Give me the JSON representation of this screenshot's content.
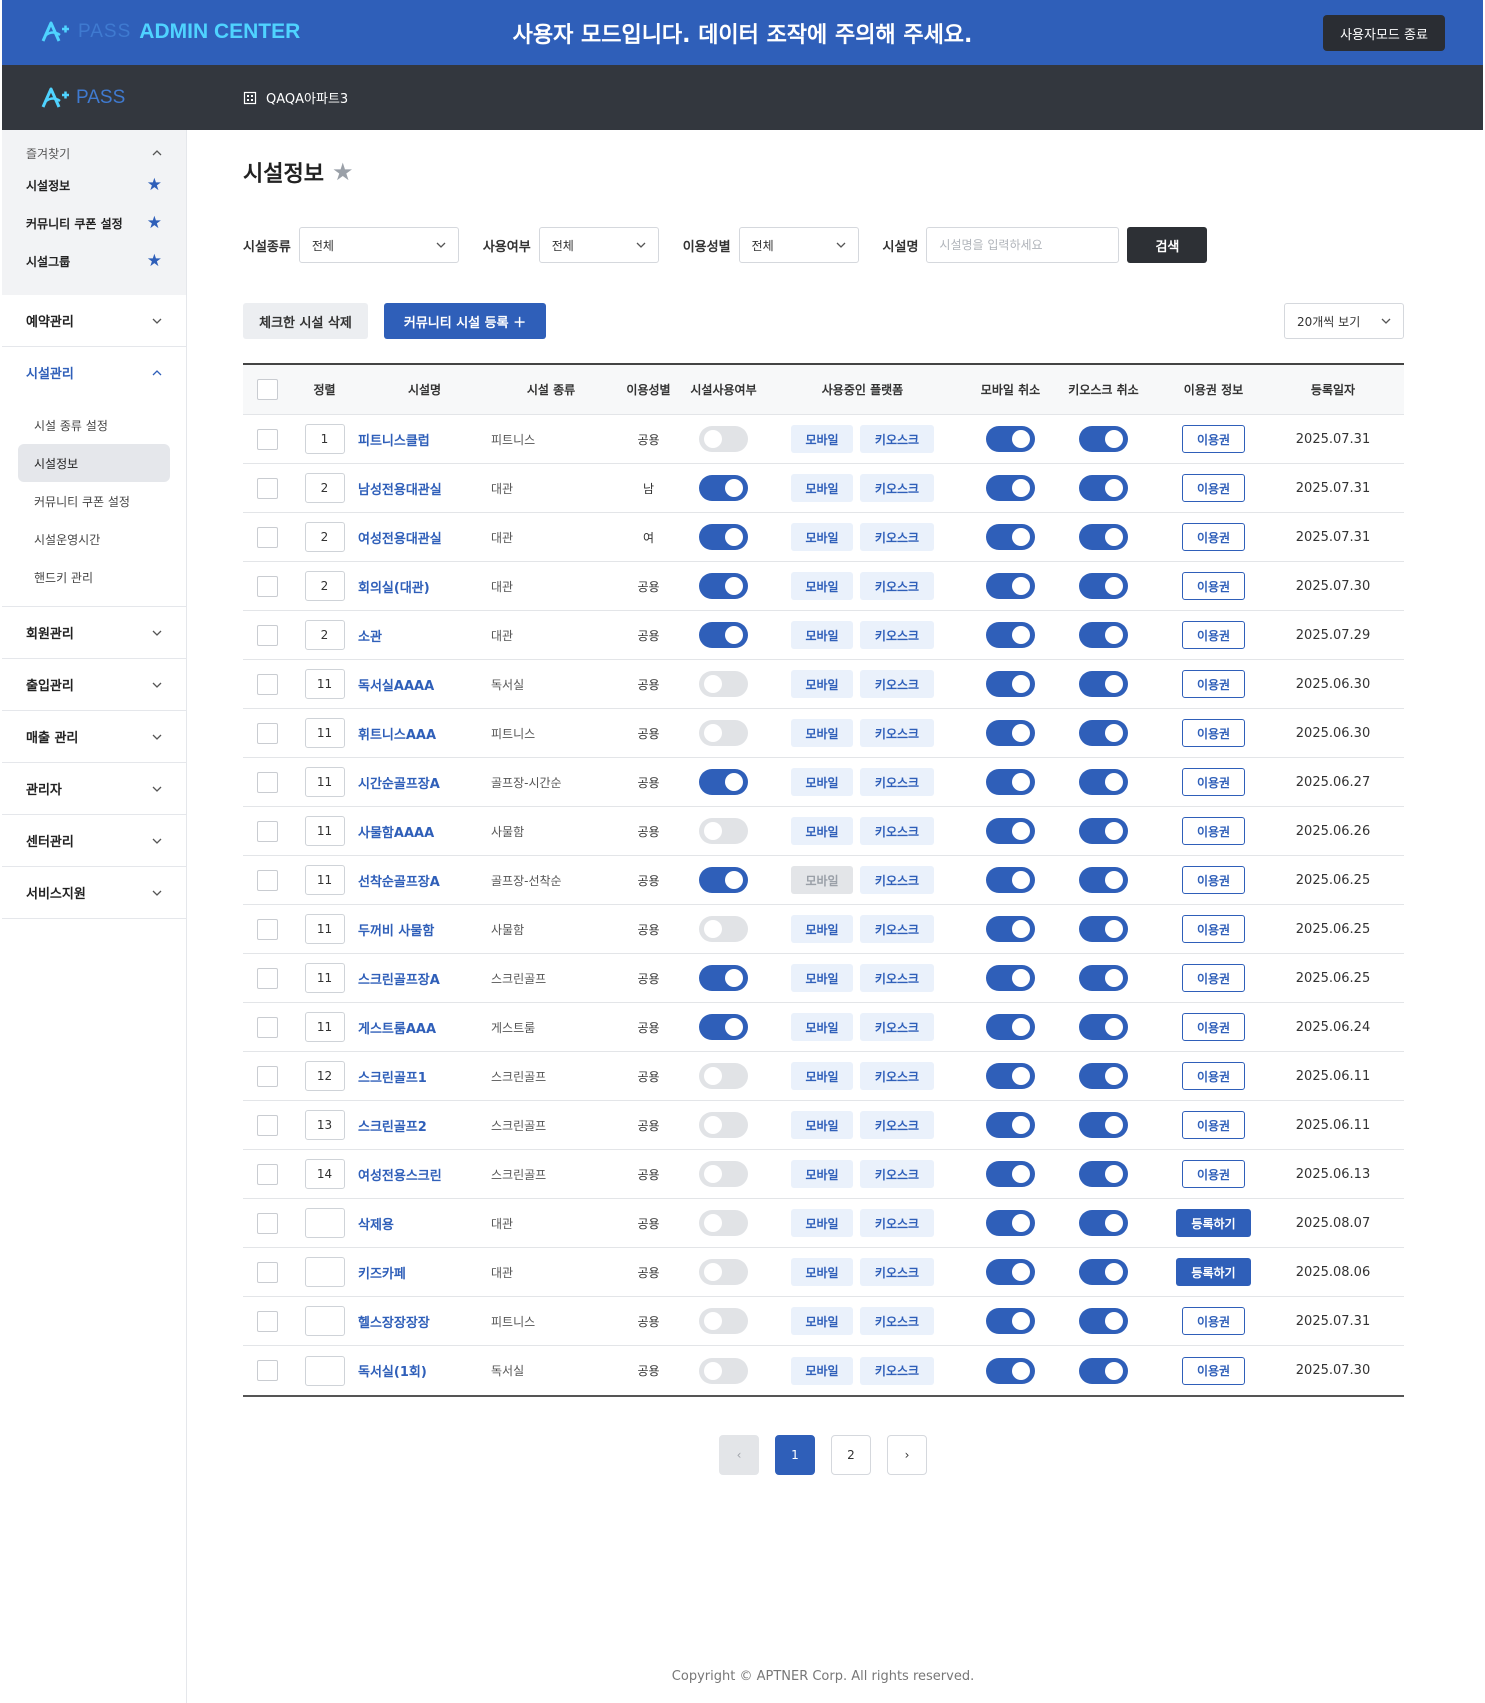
{
  "banner": {
    "logo_pass": "PASS",
    "logo_admin": "ADMIN CENTER",
    "notice": "사용자 모드입니다. 데이터 조작에 주의해 주세요.",
    "end_button": "사용자모드 종료"
  },
  "topbar": {
    "logo_pass": "PASS",
    "apartment": "QAQA아파트3"
  },
  "sidebar": {
    "favorites_label": "즐겨찾기",
    "favorites": [
      {
        "label": "시설정보"
      },
      {
        "label": "커뮤니티 쿠폰 설정"
      },
      {
        "label": "시설그룹"
      }
    ],
    "groups": [
      {
        "label": "예약관리"
      },
      {
        "label": "시설관리"
      },
      {
        "label": "회원관리"
      },
      {
        "label": "출입관리"
      },
      {
        "label": "매출 관리"
      },
      {
        "label": "관리자"
      },
      {
        "label": "센터관리"
      },
      {
        "label": "서비스지원"
      }
    ],
    "facility_sub": [
      {
        "label": "시설 종류 설정"
      },
      {
        "label": "시설정보"
      },
      {
        "label": "커뮤니티 쿠폰 설정"
      },
      {
        "label": "시설운영시간"
      },
      {
        "label": "핸드키 관리"
      }
    ]
  },
  "page": {
    "title": "시설정보"
  },
  "filters": {
    "type_label": "시설종류",
    "type_value": "전체",
    "use_label": "사용여부",
    "use_value": "전체",
    "sex_label": "이용성별",
    "sex_value": "전체",
    "name_label": "시설명",
    "name_placeholder": "시설명을 입력하세요",
    "search_button": "검색"
  },
  "actions": {
    "delete_button": "체크한 시설 삭제",
    "register_button": "커뮤니티 시설 등록  ＋",
    "page_size": "20개씩 보기"
  },
  "table": {
    "headers": {
      "order": "정렬",
      "name": "시설명",
      "type": "시설 종류",
      "sex": "이용성별",
      "use": "시설사용여부",
      "platform": "사용중인 플랫폼",
      "mobile_cancel": "모바일 취소",
      "kiosk_cancel": "키오스크 취소",
      "ticket": "이용권 정보",
      "date": "등록일자"
    },
    "mobile_label": "모바일",
    "kiosk_label": "키오스크",
    "rows": [
      {
        "order": "1",
        "name": "피트니스클럽",
        "type": "피트니스",
        "sex": "공용",
        "use": false,
        "mobile_enabled": true,
        "mobile_cancel": true,
        "kiosk_cancel": true,
        "ticket": "이용권",
        "ticket_style": "outline",
        "date": "2025.07.31"
      },
      {
        "order": "2",
        "name": "남성전용대관실",
        "type": "대관",
        "sex": "남",
        "use": true,
        "mobile_enabled": true,
        "mobile_cancel": true,
        "kiosk_cancel": true,
        "ticket": "이용권",
        "ticket_style": "outline",
        "date": "2025.07.31"
      },
      {
        "order": "2",
        "name": "여성전용대관실",
        "type": "대관",
        "sex": "여",
        "use": true,
        "mobile_enabled": true,
        "mobile_cancel": true,
        "kiosk_cancel": true,
        "ticket": "이용권",
        "ticket_style": "outline",
        "date": "2025.07.31"
      },
      {
        "order": "2",
        "name": "회의실(대관)",
        "type": "대관",
        "sex": "공용",
        "use": true,
        "mobile_enabled": true,
        "mobile_cancel": true,
        "kiosk_cancel": true,
        "ticket": "이용권",
        "ticket_style": "outline",
        "date": "2025.07.30"
      },
      {
        "order": "2",
        "name": "소관",
        "type": "대관",
        "sex": "공용",
        "use": true,
        "mobile_enabled": true,
        "mobile_cancel": true,
        "kiosk_cancel": true,
        "ticket": "이용권",
        "ticket_style": "outline",
        "date": "2025.07.29"
      },
      {
        "order": "11",
        "name": "독서실AAAA",
        "type": "독서실",
        "sex": "공용",
        "use": false,
        "mobile_enabled": true,
        "mobile_cancel": true,
        "kiosk_cancel": true,
        "ticket": "이용권",
        "ticket_style": "outline",
        "date": "2025.06.30"
      },
      {
        "order": "11",
        "name": "휘트니스AAA",
        "type": "피트니스",
        "sex": "공용",
        "use": false,
        "mobile_enabled": true,
        "mobile_cancel": true,
        "kiosk_cancel": true,
        "ticket": "이용권",
        "ticket_style": "outline",
        "date": "2025.06.30"
      },
      {
        "order": "11",
        "name": "시간순골프장A",
        "type": "골프장-시간순",
        "sex": "공용",
        "use": true,
        "mobile_enabled": true,
        "mobile_cancel": true,
        "kiosk_cancel": true,
        "ticket": "이용권",
        "ticket_style": "outline",
        "date": "2025.06.27"
      },
      {
        "order": "11",
        "name": "사물함AAAA",
        "type": "사물함",
        "sex": "공용",
        "use": false,
        "mobile_enabled": true,
        "mobile_cancel": true,
        "kiosk_cancel": true,
        "ticket": "이용권",
        "ticket_style": "outline",
        "date": "2025.06.26"
      },
      {
        "order": "11",
        "name": "선착순골프장A",
        "type": "골프장-선착순",
        "sex": "공용",
        "use": true,
        "mobile_enabled": false,
        "mobile_cancel": true,
        "kiosk_cancel": true,
        "ticket": "이용권",
        "ticket_style": "outline",
        "date": "2025.06.25"
      },
      {
        "order": "11",
        "name": "두꺼비 사물함",
        "type": "사물함",
        "sex": "공용",
        "use": false,
        "mobile_enabled": true,
        "mobile_cancel": true,
        "kiosk_cancel": true,
        "ticket": "이용권",
        "ticket_style": "outline",
        "date": "2025.06.25"
      },
      {
        "order": "11",
        "name": "스크린골프장A",
        "type": "스크린골프",
        "sex": "공용",
        "use": true,
        "mobile_enabled": true,
        "mobile_cancel": true,
        "kiosk_cancel": true,
        "ticket": "이용권",
        "ticket_style": "outline",
        "date": "2025.06.25"
      },
      {
        "order": "11",
        "name": "게스트룸AAA",
        "type": "게스트룸",
        "sex": "공용",
        "use": true,
        "mobile_enabled": true,
        "mobile_cancel": true,
        "kiosk_cancel": true,
        "ticket": "이용권",
        "ticket_style": "outline",
        "date": "2025.06.24"
      },
      {
        "order": "12",
        "name": "스크린골프1",
        "type": "스크린골프",
        "sex": "공용",
        "use": false,
        "mobile_enabled": true,
        "mobile_cancel": true,
        "kiosk_cancel": true,
        "ticket": "이용권",
        "ticket_style": "outline",
        "date": "2025.06.11"
      },
      {
        "order": "13",
        "name": "스크린골프2",
        "type": "스크린골프",
        "sex": "공용",
        "use": false,
        "mobile_enabled": true,
        "mobile_cancel": true,
        "kiosk_cancel": true,
        "ticket": "이용권",
        "ticket_style": "outline",
        "date": "2025.06.11"
      },
      {
        "order": "14",
        "name": "여성전용스크린",
        "type": "스크린골프",
        "sex": "공용",
        "use": false,
        "mobile_enabled": true,
        "mobile_cancel": true,
        "kiosk_cancel": true,
        "ticket": "이용권",
        "ticket_style": "outline",
        "date": "2025.06.13"
      },
      {
        "order": "",
        "name": "삭제용",
        "type": "대관",
        "sex": "공용",
        "use": false,
        "mobile_enabled": true,
        "mobile_cancel": true,
        "kiosk_cancel": true,
        "ticket": "등록하기",
        "ticket_style": "solid",
        "date": "2025.08.07"
      },
      {
        "order": "",
        "name": "키즈카페",
        "type": "대관",
        "sex": "공용",
        "use": false,
        "mobile_enabled": true,
        "mobile_cancel": true,
        "kiosk_cancel": true,
        "ticket": "등록하기",
        "ticket_style": "solid",
        "date": "2025.08.06"
      },
      {
        "order": "",
        "name": "헬스장장장장",
        "type": "피트니스",
        "sex": "공용",
        "use": false,
        "mobile_enabled": true,
        "mobile_cancel": true,
        "kiosk_cancel": true,
        "ticket": "이용권",
        "ticket_style": "outline",
        "date": "2025.07.31"
      },
      {
        "order": "",
        "name": "독서실(1회)",
        "type": "독서실",
        "sex": "공용",
        "use": false,
        "mobile_enabled": true,
        "mobile_cancel": true,
        "kiosk_cancel": true,
        "ticket": "이용권",
        "ticket_style": "outline",
        "date": "2025.07.30"
      }
    ]
  },
  "pagination": {
    "prev": "‹",
    "pages": [
      "1",
      "2"
    ],
    "current": "1",
    "next": "›"
  },
  "footer": {
    "copyright": "Copyright © APTNER Corp. All rights reserved."
  },
  "colors": {
    "primary": "#2f5fb9",
    "banner": "#2f5fb9",
    "header_dark": "#33373e"
  }
}
